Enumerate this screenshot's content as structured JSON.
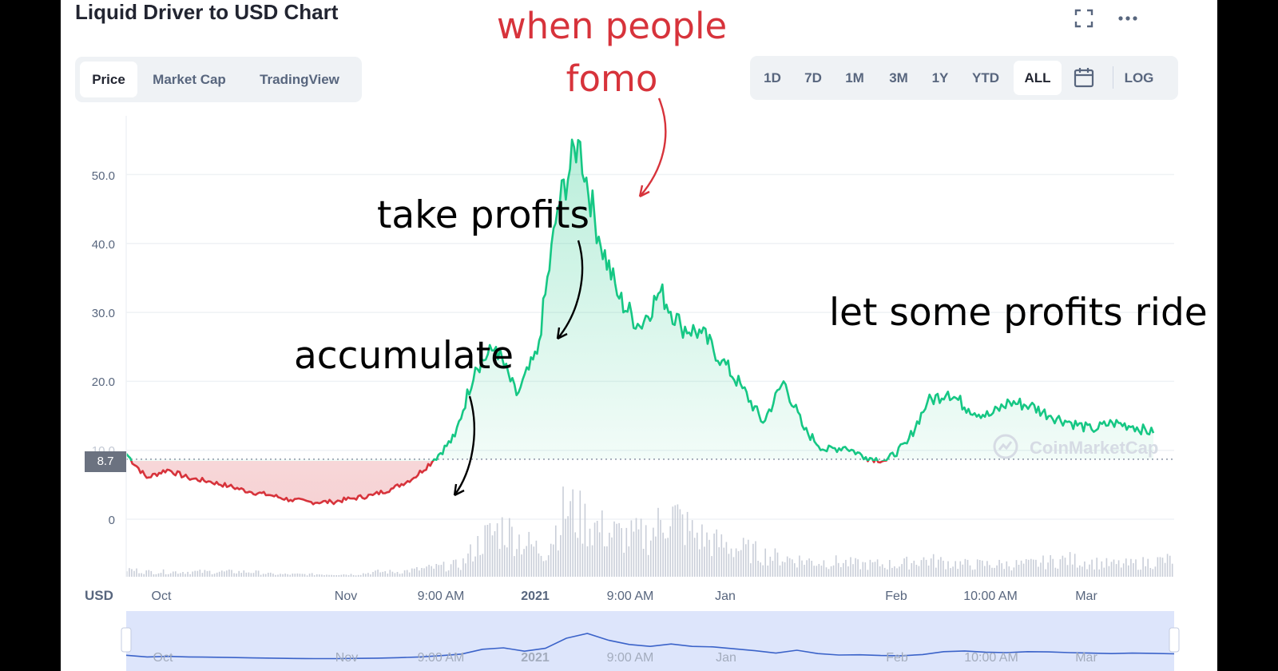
{
  "header": {
    "title": "Liquid Driver to USD Chart"
  },
  "view_tabs": [
    "Price",
    "Market Cap",
    "TradingView"
  ],
  "active_view_tab": "Price",
  "range_buttons": [
    "1D",
    "7D",
    "1M",
    "3M",
    "1Y",
    "YTD",
    "ALL",
    "LOG"
  ],
  "active_range": "ALL",
  "icons": {
    "fullscreen": "fullscreen-icon",
    "more": "more-icon",
    "calendar": "calendar-icon",
    "watermark": "coinmarketcap-logo-icon"
  },
  "watermark_text": "CoinMarketCap",
  "currency_label": "USD",
  "current_price_badge": "8.7",
  "annotations": {
    "fomo": "when people\nfomo",
    "take_profits": "take profits",
    "accumulate": "accumulate",
    "let_ride": "let some profits ride"
  },
  "colors": {
    "up": "#16c784",
    "down": "#d7333b",
    "annotation_red": "#d7333b",
    "navigator": "#dde5fb"
  },
  "chart_data": {
    "type": "area",
    "title": "Liquid Driver to USD Chart",
    "ylabel": "USD",
    "ylim": [
      0,
      58
    ],
    "y_ticks": [
      "0",
      "10.0",
      "20.0",
      "30.0",
      "40.0",
      "50.0"
    ],
    "x_ticks": [
      "Oct",
      "Nov",
      "9:00 AM",
      "2021",
      "9:00 AM",
      "Jan",
      "Feb",
      "10:00 AM",
      "Mar"
    ],
    "baseline": 8.7,
    "series": [
      {
        "x_index": [
          0,
          2,
          4,
          6,
          8,
          10,
          12,
          14,
          16,
          18,
          20,
          22,
          24,
          26,
          28,
          30,
          32,
          34,
          36,
          38,
          40,
          42,
          44,
          46,
          48,
          50,
          52,
          54,
          56,
          58,
          60,
          62,
          64,
          66,
          68,
          70,
          72,
          74,
          76,
          78,
          80,
          82,
          84,
          86,
          88,
          90,
          92,
          94,
          96,
          98,
          100
        ],
        "values": [
          9.5,
          6.0,
          7.2,
          6.0,
          5.5,
          4.8,
          4.0,
          3.5,
          2.8,
          2.5,
          2.5,
          3.0,
          3.5,
          4.5,
          6.0,
          8.7,
          12.0,
          22.0,
          25.0,
          18.0,
          24.0,
          45.0,
          55.0,
          41.0,
          32.0,
          28.0,
          33.0,
          28.0,
          27.0,
          23.0,
          19.0,
          14.0,
          20.0,
          13.0,
          10.0,
          10.5,
          9.0,
          8.5,
          11.0,
          17.0,
          18.5,
          16.0,
          15.0,
          17.0,
          16.5,
          15.0,
          14.0,
          13.0,
          14.0,
          13.5,
          12.5
        ]
      }
    ],
    "volume": [
      3,
      2,
      2,
      2,
      2,
      2,
      2,
      1,
      1,
      1,
      1,
      1,
      2,
      2,
      3,
      4,
      5,
      15,
      20,
      14,
      10,
      28,
      22,
      18,
      16,
      17,
      26,
      18,
      14,
      12,
      10,
      8,
      7,
      6,
      6,
      5,
      5,
      5,
      7,
      6,
      5,
      5,
      5,
      5,
      6,
      7,
      6,
      5,
      5,
      6,
      7
    ],
    "grid": true,
    "legend": "none"
  }
}
